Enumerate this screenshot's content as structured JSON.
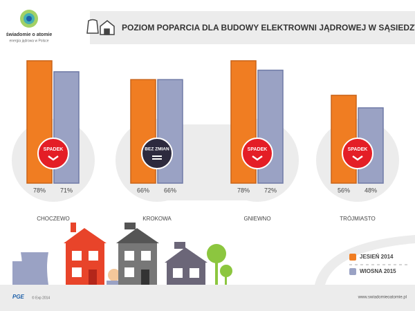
{
  "brand": {
    "name": "świadomie o atomie",
    "tagline": "energia jądrowa w Polsce"
  },
  "footer": {
    "logo": "PGE",
    "copyright": "© Exp 2014",
    "url": "www.swiadomieoatomie.pl"
  },
  "chart_data": {
    "type": "bar",
    "title": "POZIOM POPARCIA DLA BUDOWY ELEKTROWNI JĄDROWEJ W SĄSIEDZTWIE",
    "categories": [
      "CHOCZEWO",
      "KROKOWA",
      "GNIEWNO",
      "TRÓJMIASTO"
    ],
    "badges": [
      "SPADEK",
      "BEZ ZMIAN",
      "SPADEK",
      "SPADEK"
    ],
    "series": [
      {
        "name": "JESIEŃ 2014",
        "color": "#f07d22",
        "values": [
          78,
          66,
          78,
          56
        ],
        "value_labels": [
          "78%",
          "66%",
          "78%",
          "56%"
        ]
      },
      {
        "name": "WIOSNA 2015",
        "color": "#9aa2c4",
        "values": [
          71,
          66,
          72,
          48
        ],
        "value_labels": [
          "71%",
          "66%",
          "72%",
          "48%"
        ]
      }
    ]
  }
}
